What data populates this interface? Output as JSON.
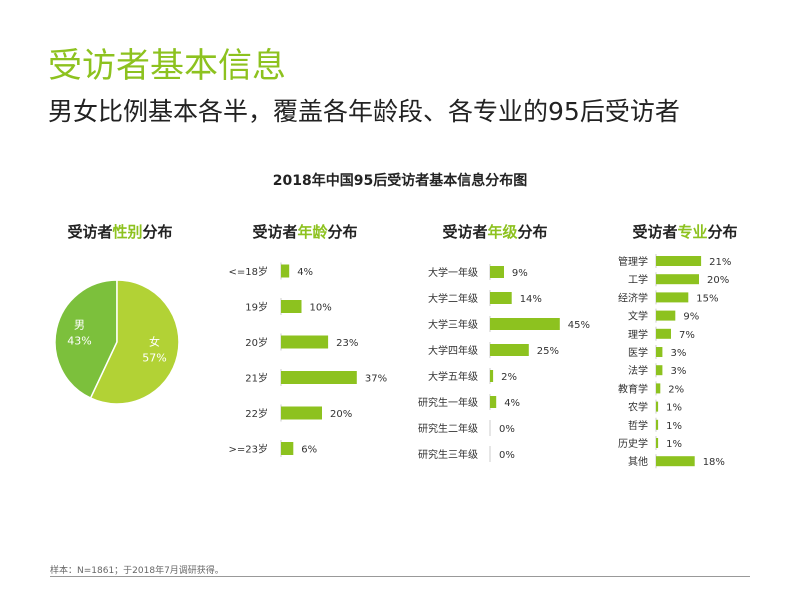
{
  "header": {
    "title": "受访者基本信息",
    "subtitle": "男女比例基本各半，覆盖各年龄段、各专业的95后受访者"
  },
  "footnote": "样本：N=1861；于2018年7月调研获得。",
  "colors": {
    "accent": "#8dc21f",
    "pie_male": "#7cc03c",
    "pie_female": "#b2d235",
    "bar": "#8dc21f"
  },
  "chart_data": [
    {
      "type": "pie",
      "title": "2018年中国95后受访者基本信息分布图",
      "panel_title": {
        "prefix": "受访者",
        "highlight": "性别",
        "suffix": "分布"
      },
      "categories": [
        "男",
        "女"
      ],
      "values": [
        43,
        57
      ],
      "value_labels": [
        "43%",
        "57%"
      ]
    },
    {
      "type": "bar",
      "orientation": "horizontal",
      "panel_title": {
        "prefix": "受访者",
        "highlight": "年龄",
        "suffix": "分布"
      },
      "categories": [
        "<=18岁",
        "19岁",
        "20岁",
        "21岁",
        "22岁",
        ">=23岁"
      ],
      "values": [
        4,
        10,
        23,
        37,
        20,
        6
      ],
      "value_labels": [
        "4%",
        "10%",
        "23%",
        "37%",
        "20%",
        "6%"
      ]
    },
    {
      "type": "bar",
      "orientation": "horizontal",
      "panel_title": {
        "prefix": "受访者",
        "highlight": "年级",
        "suffix": "分布"
      },
      "categories": [
        "大学一年级",
        "大学二年级",
        "大学三年级",
        "大学四年级",
        "大学五年级",
        "研究生一年级",
        "研究生二年级",
        "研究生三年级"
      ],
      "values": [
        9,
        14,
        45,
        25,
        2,
        4,
        0,
        0
      ],
      "value_labels": [
        "9%",
        "14%",
        "45%",
        "25%",
        "2%",
        "4%",
        "0%",
        "0%"
      ]
    },
    {
      "type": "bar",
      "orientation": "horizontal",
      "panel_title": {
        "prefix": "受访者",
        "highlight": "专业",
        "suffix": "分布"
      },
      "categories": [
        "管理学",
        "工学",
        "经济学",
        "文学",
        "理学",
        "医学",
        "法学",
        "教育学",
        "农学",
        "哲学",
        "历史学",
        "其他"
      ],
      "values": [
        21,
        20,
        15,
        9,
        7,
        3,
        3,
        2,
        1,
        1,
        1,
        18
      ],
      "value_labels": [
        "21%",
        "20%",
        "15%",
        "9%",
        "7%",
        "3%",
        "3%",
        "2%",
        "1%",
        "1%",
        "1%",
        "18%"
      ]
    }
  ]
}
